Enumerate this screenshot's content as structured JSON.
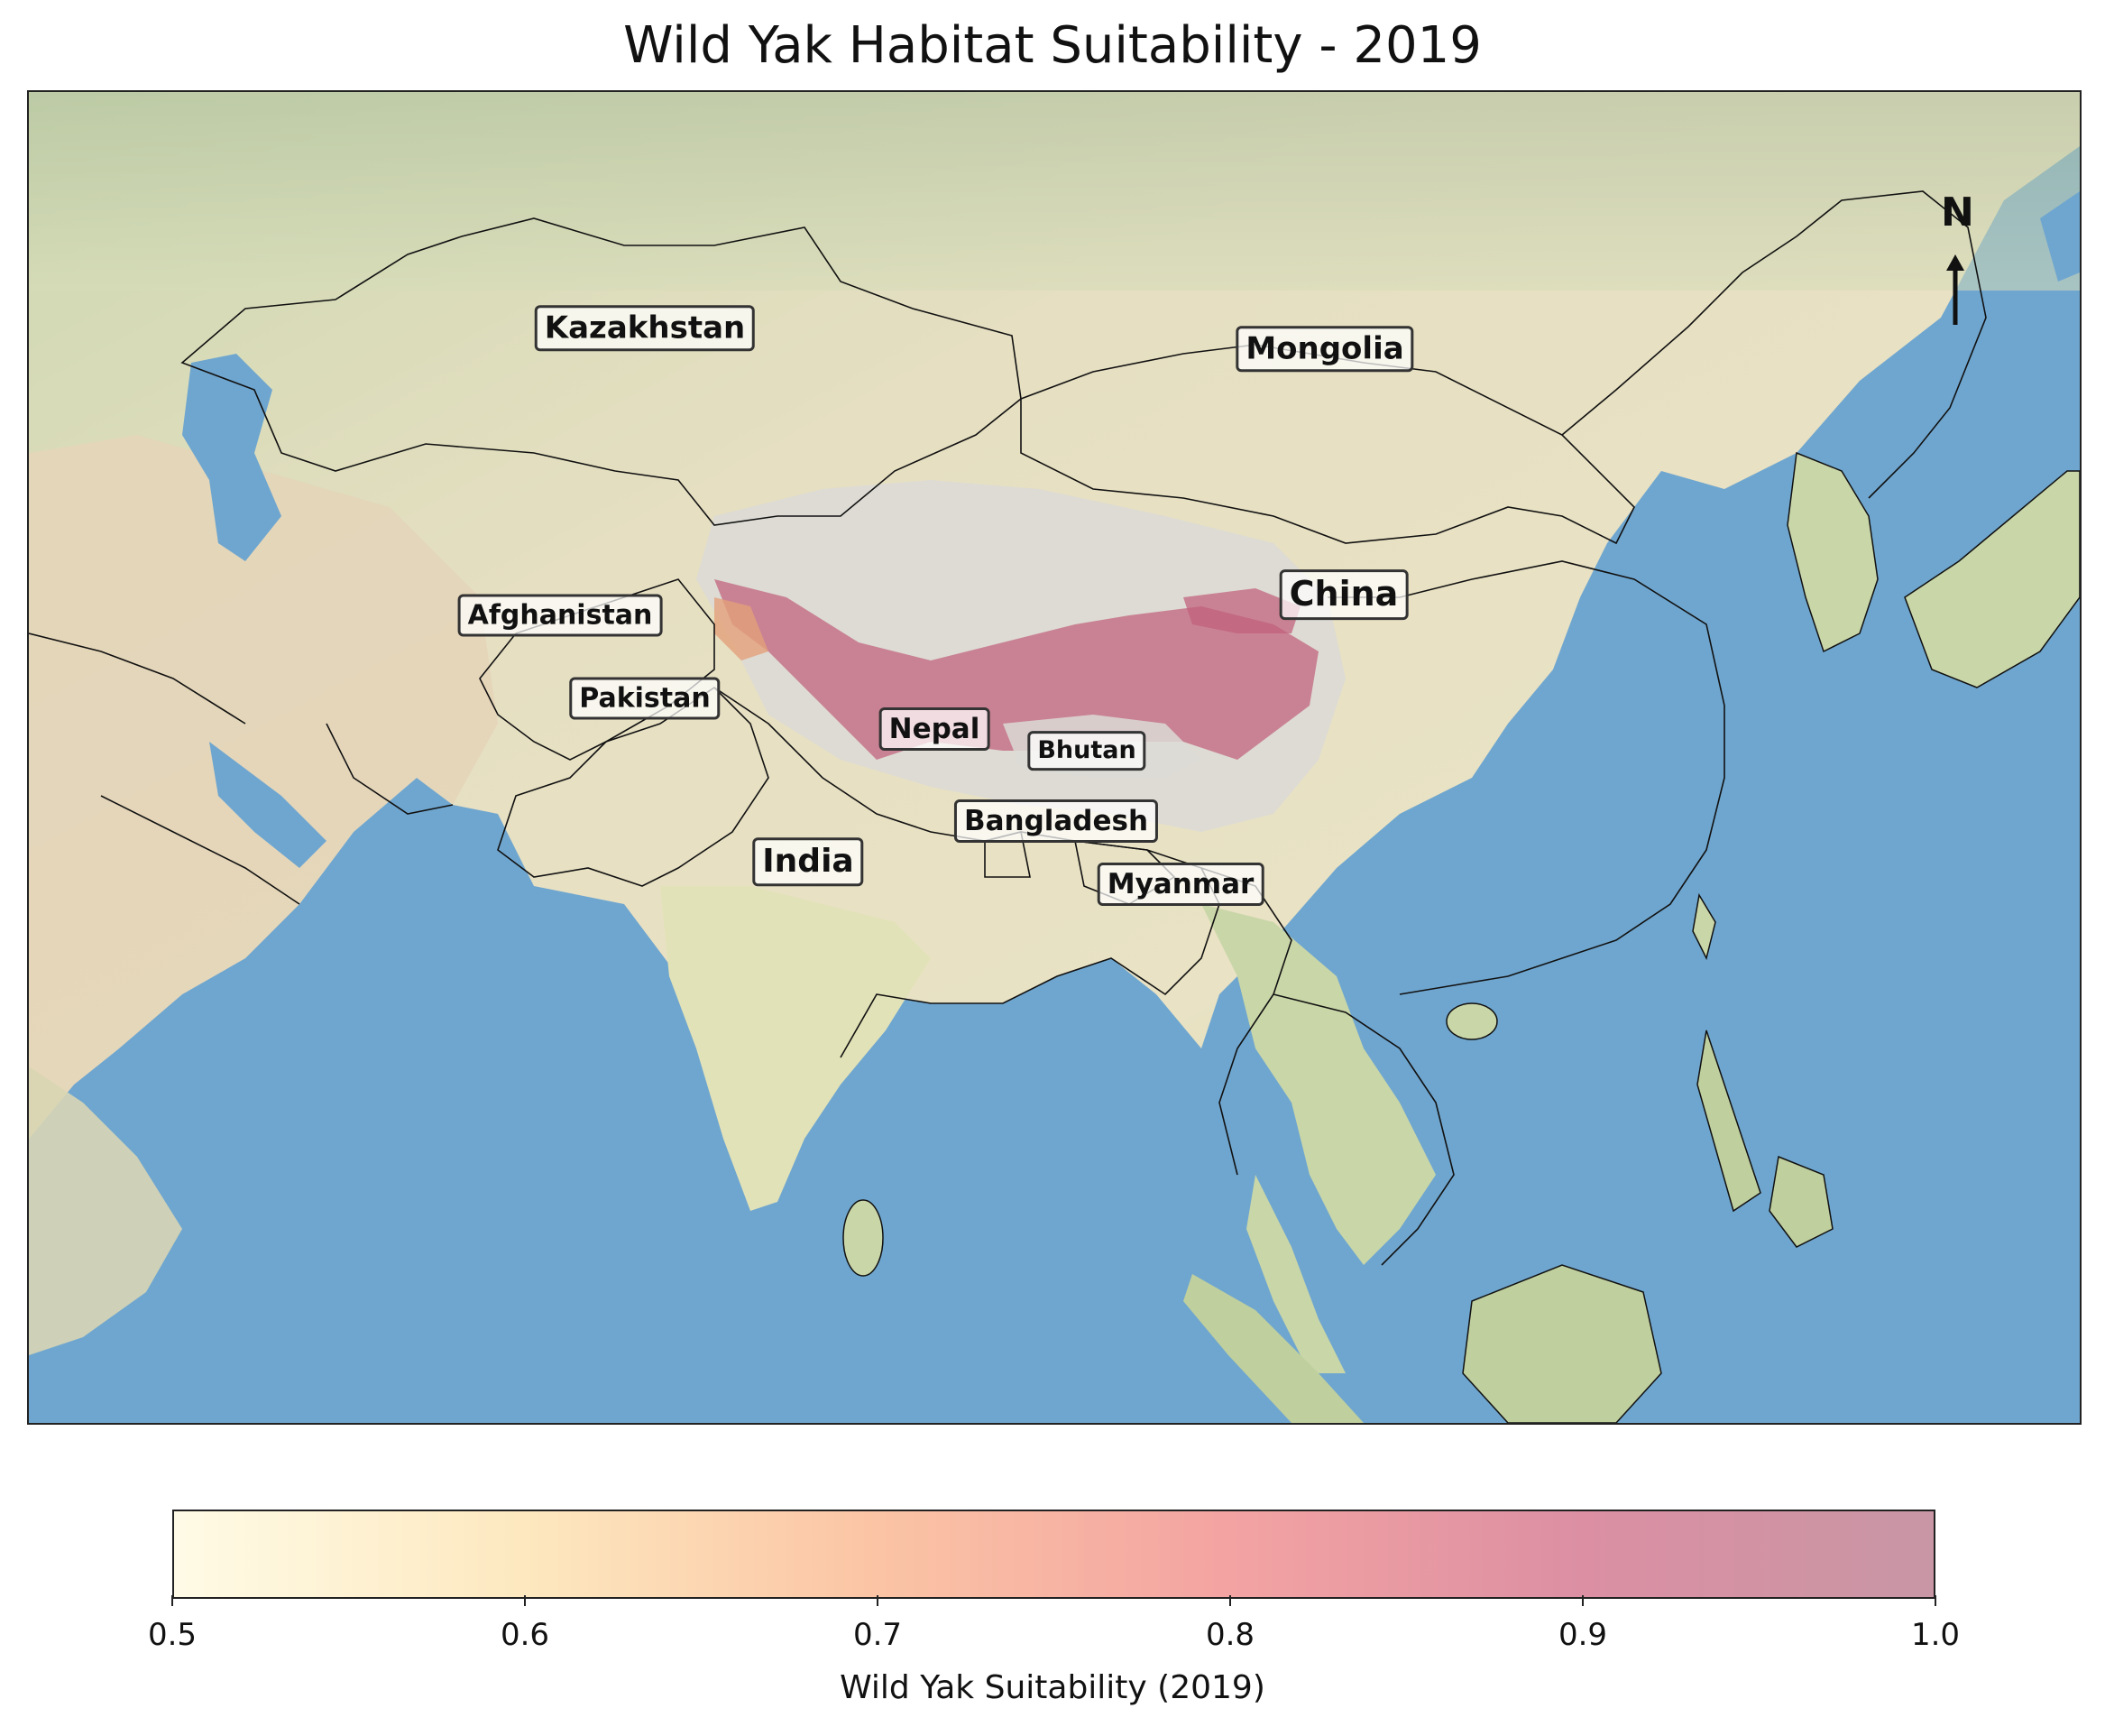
{
  "title": "Wild Yak Habitat Suitability - 2019",
  "map": {
    "north_label": "N",
    "country_labels": [
      {
        "key": "kazakhstan",
        "text": "Kazakhstan"
      },
      {
        "key": "mongolia",
        "text": "Mongolia"
      },
      {
        "key": "china",
        "text": "China"
      },
      {
        "key": "afghanistan",
        "text": "Afghanistan"
      },
      {
        "key": "pakistan",
        "text": "Pakistan"
      },
      {
        "key": "nepal",
        "text": "Nepal"
      },
      {
        "key": "bhutan",
        "text": "Bhutan"
      },
      {
        "key": "bangladesh",
        "text": "Bangladesh"
      },
      {
        "key": "india",
        "text": "India"
      },
      {
        "key": "myanmar",
        "text": "Myanmar"
      }
    ],
    "colors": {
      "ocean": "#6fa6cf",
      "land_arid": "#e7dcc0",
      "land_green": "#c9d6a8",
      "highland": "#d9d6d0",
      "suitability_high": "#c0607a"
    }
  },
  "colorbar": {
    "label": "Wild Yak Suitability (2019)",
    "ticks": [
      "0.5",
      "0.6",
      "0.7",
      "0.8",
      "0.9",
      "1.0"
    ],
    "range": [
      0.5,
      1.0
    ],
    "colors": [
      "#fffbe6",
      "#fde8bf",
      "#fbc4a4",
      "#f3a3a2",
      "#dc8fa3",
      "#c896a5"
    ]
  }
}
